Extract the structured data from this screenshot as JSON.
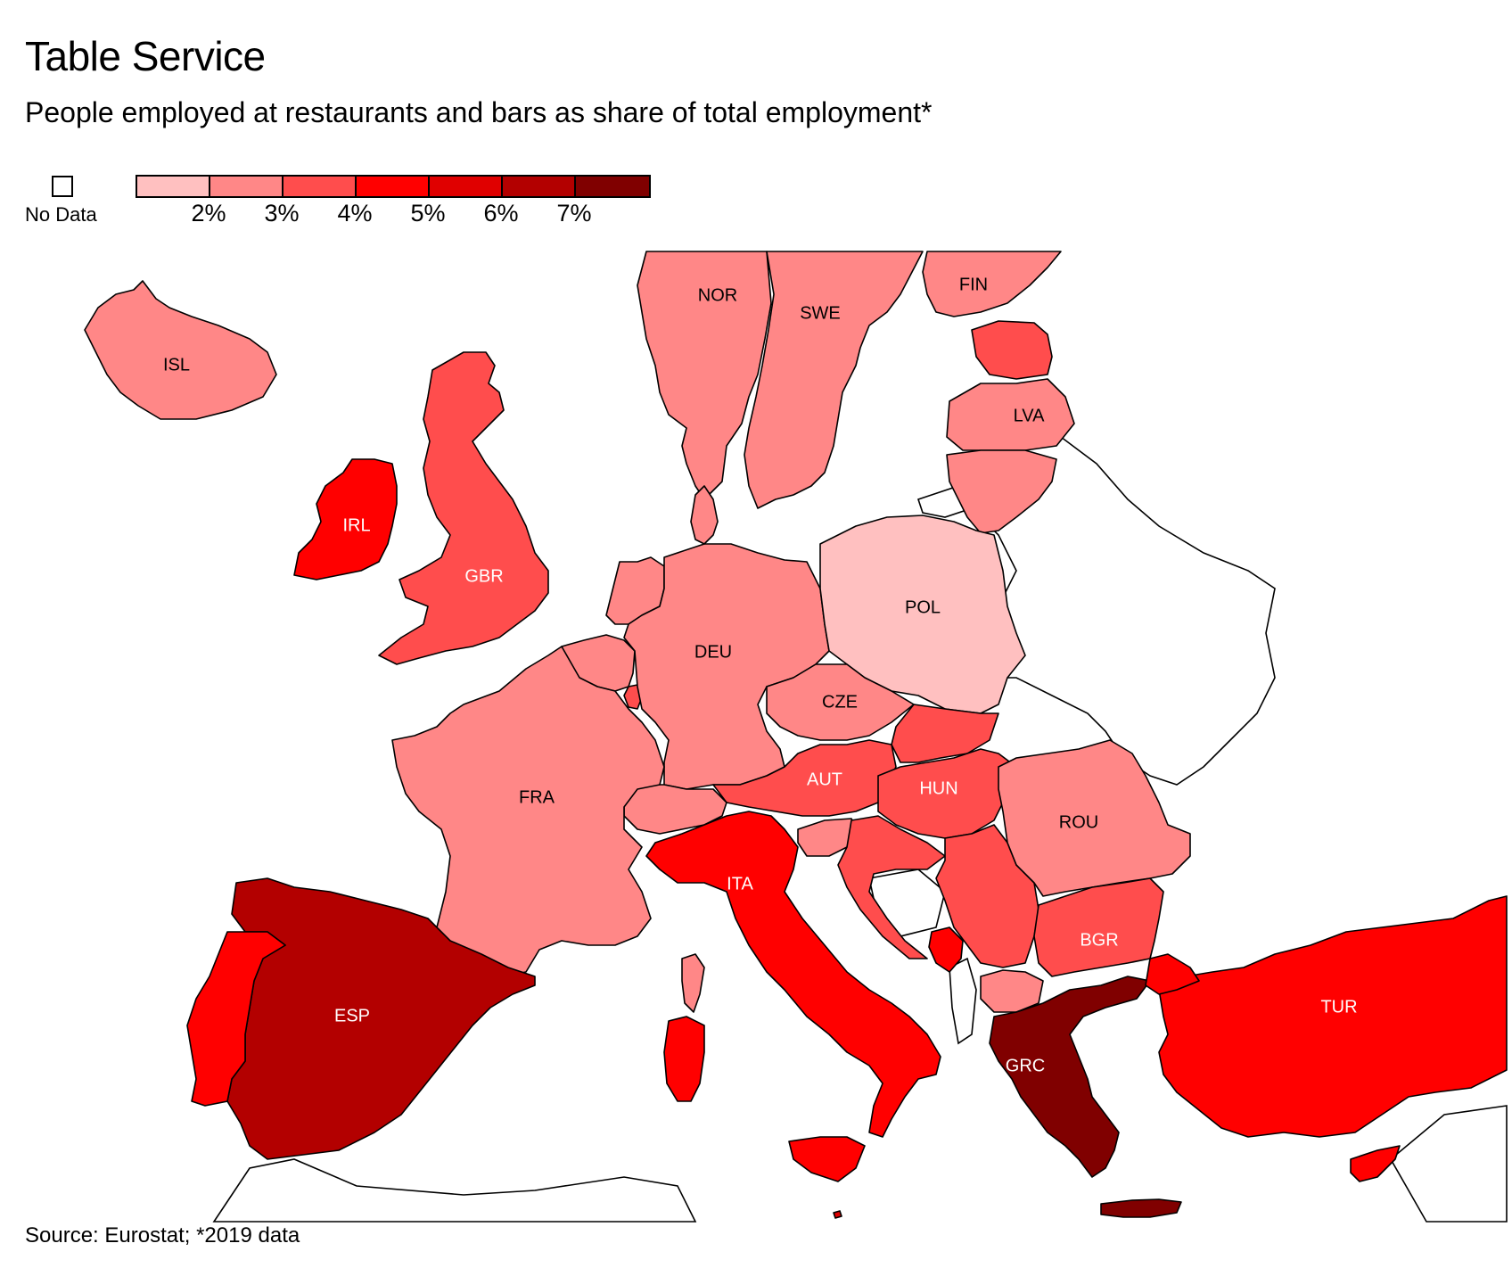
{
  "header": {
    "title": "Table Service",
    "subtitle": "People employed at restaurants and bars as share of total employment*"
  },
  "legend": {
    "no_data_label": "No Data",
    "bins": [
      "#ffc0c0",
      "#ff8787",
      "#ff4d4d",
      "#ff0000",
      "#e00000",
      "#b30000",
      "#800000"
    ],
    "tick_labels": [
      "2%",
      "3%",
      "4%",
      "5%",
      "6%",
      "7%"
    ]
  },
  "footer": {
    "source": "Source: Eurostat; *2019 data"
  },
  "chart_data": {
    "type": "choropleth",
    "title": "Table Service",
    "subtitle": "People employed at restaurants and bars as share of total employment*",
    "unit": "%",
    "countries": [
      {
        "code": "ISL",
        "label": "ISL",
        "bin": 1,
        "color": "#ff8787"
      },
      {
        "code": "NOR",
        "label": "NOR",
        "bin": 1,
        "color": "#ff8787"
      },
      {
        "code": "SWE",
        "label": "SWE",
        "bin": 1,
        "color": "#ff8787"
      },
      {
        "code": "FIN",
        "label": "FIN",
        "bin": 1,
        "color": "#ff8787"
      },
      {
        "code": "EST",
        "label": "",
        "bin": 2,
        "color": "#ff4d4d"
      },
      {
        "code": "LVA",
        "label": "LVA",
        "bin": 1,
        "color": "#ff8787"
      },
      {
        "code": "LTU",
        "label": "",
        "bin": 1,
        "color": "#ff8787"
      },
      {
        "code": "GBR",
        "label": "GBR",
        "bin": 2,
        "color": "#ff4d4d"
      },
      {
        "code": "IRL",
        "label": "IRL",
        "bin": 3,
        "color": "#ff0000"
      },
      {
        "code": "NLD",
        "label": "",
        "bin": 1,
        "color": "#ff8787"
      },
      {
        "code": "BEL",
        "label": "",
        "bin": 1,
        "color": "#ff8787"
      },
      {
        "code": "LUX",
        "label": "",
        "bin": 2,
        "color": "#ff4d4d"
      },
      {
        "code": "DEU",
        "label": "DEU",
        "bin": 1,
        "color": "#ff8787"
      },
      {
        "code": "DNK",
        "label": "",
        "bin": 1,
        "color": "#ff8787"
      },
      {
        "code": "POL",
        "label": "POL",
        "bin": 0,
        "color": "#ffc0c0"
      },
      {
        "code": "CZE",
        "label": "CZE",
        "bin": 1,
        "color": "#ff8787"
      },
      {
        "code": "SVK",
        "label": "",
        "bin": 2,
        "color": "#ff4d4d"
      },
      {
        "code": "AUT",
        "label": "AUT",
        "bin": 2,
        "color": "#ff4d4d"
      },
      {
        "code": "HUN",
        "label": "HUN",
        "bin": 2,
        "color": "#ff4d4d"
      },
      {
        "code": "CHE",
        "label": "",
        "bin": 1,
        "color": "#ff8787"
      },
      {
        "code": "FRA",
        "label": "FRA",
        "bin": 1,
        "color": "#ff8787"
      },
      {
        "code": "ESP",
        "label": "ESP",
        "bin": 5,
        "color": "#b30000"
      },
      {
        "code": "PRT",
        "label": "",
        "bin": 3,
        "color": "#ff0000"
      },
      {
        "code": "ITA",
        "label": "ITA",
        "bin": 3,
        "color": "#ff0000"
      },
      {
        "code": "SVN",
        "label": "",
        "bin": 1,
        "color": "#ff8787"
      },
      {
        "code": "HRV",
        "label": "",
        "bin": 2,
        "color": "#ff4d4d"
      },
      {
        "code": "SRB",
        "label": "",
        "bin": 2,
        "color": "#ff4d4d"
      },
      {
        "code": "MNE",
        "label": "",
        "bin": 3,
        "color": "#ff0000"
      },
      {
        "code": "MKD",
        "label": "",
        "bin": 1,
        "color": "#ff8787"
      },
      {
        "code": "ROU",
        "label": "ROU",
        "bin": 1,
        "color": "#ff8787"
      },
      {
        "code": "BGR",
        "label": "BGR",
        "bin": 2,
        "color": "#ff4d4d"
      },
      {
        "code": "GRC",
        "label": "GRC",
        "bin": 6,
        "color": "#800000"
      },
      {
        "code": "TUR",
        "label": "TUR",
        "bin": 3,
        "color": "#ff0000"
      },
      {
        "code": "CYP",
        "label": "",
        "bin": 3,
        "color": "#ff0000"
      },
      {
        "code": "MLT",
        "label": "",
        "bin": 4,
        "color": "#e00000"
      }
    ]
  }
}
